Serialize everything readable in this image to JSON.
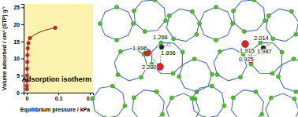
{
  "chart_data": {
    "type": "line",
    "x_label": "Equilibrium pressure / kPa",
    "y_label": "Volume adsorbed / cm³ (STP) g⁻¹",
    "annotation": "Adsorption isotherm",
    "x": [
      0.0002,
      0.0004,
      0.0006,
      0.0008,
      0.001,
      0.0015,
      0.002,
      0.003,
      0.005,
      0.01,
      0.09
    ],
    "series": [
      {
        "name": "Adsorption isotherm",
        "color": "#d62020",
        "marker": "circle",
        "values": [
          1,
          2,
          3.5,
          5,
          7,
          9,
          11,
          13,
          14.5,
          16,
          19
        ]
      }
    ],
    "xlim": [
      -0.01,
      0.21
    ],
    "xticks": [
      0,
      0.1,
      0.2
    ],
    "ylim": [
      0,
      26
    ],
    "yticks": [
      0,
      5,
      10,
      15,
      20,
      25
    ],
    "grid": false
  },
  "structures": [
    {
      "labels": [
        "1.896",
        "1.266",
        "1.896",
        "2.280"
      ]
    },
    {
      "labels": [
        "2.014",
        "1.915",
        "1.987",
        "0.925"
      ]
    }
  ]
}
